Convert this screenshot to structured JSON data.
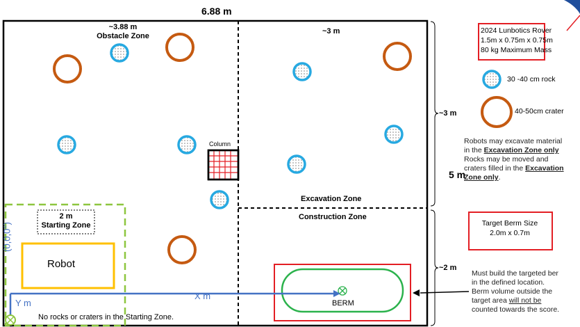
{
  "arena": {
    "width_label": "6.88 m",
    "height_label": "5 m",
    "obstacle_zone": {
      "title_line1": "~3.88 m",
      "title_line2": "Obstacle Zone"
    },
    "excavation_zone": {
      "top_label": "~3 m",
      "label": "Excavation Zone"
    },
    "construction_zone": {
      "label": "Construction Zone"
    },
    "column_label": "Column",
    "starting_zone": {
      "line1": "2 m",
      "line2": "Starting Zone"
    },
    "robot_label": "Robot",
    "origin_label": "(0,0,0°)",
    "x_axis_label": "X m",
    "y_axis_label": "Y m",
    "berm_label": "BERM",
    "bottom_note": "No rocks or craters in the Starting Zone.",
    "right_labels": {
      "upper": "~3 m",
      "lower": "~2 m"
    }
  },
  "rover_spec": {
    "line1": "2024 Lunbotics Rover",
    "line2": "1.5m x 0.75m x 0.75m",
    "line3": "80 kg Maximum Mass"
  },
  "legend": {
    "rock": "30 -40 cm rock",
    "crater": "40-50cm crater"
  },
  "excavation_note": {
    "p1": "Robots may excavate material",
    "p2a": "in the ",
    "p2b": "Excavation Zone only",
    "p3": "Rocks may be moved and",
    "p4a": "craters filled in the ",
    "p4b": "Excavation",
    "p5a": "Zone only",
    "p5b": "."
  },
  "berm_size": {
    "line1": "Target Berm Size",
    "line2": "2.0m x 0.7m"
  },
  "berm_note": {
    "l1": "Must build the targeted ber",
    "l2": "in the defined location.",
    "l3": "Berm volume outside the",
    "l4a": "target area ",
    "l4b": "will not be",
    "l5": "counted towards the score."
  },
  "colors": {
    "rock": "#27a9e1",
    "crater": "#c55a11",
    "start_zone": "#8dc63f",
    "robot_box": "#ffc000",
    "axis": "#4472c4",
    "berm": "#2bb24c",
    "highlight": "#e31e24"
  }
}
